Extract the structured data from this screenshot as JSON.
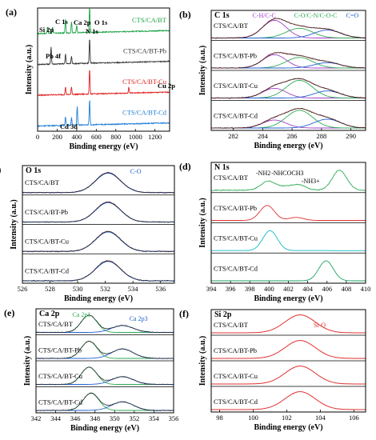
{
  "chart_data": [
    {
      "panel": "(a)",
      "type": "line",
      "xlabel": "Binding energy (eV)",
      "ylabel": "Intensity (a.u.)",
      "xlim": [
        0,
        1350
      ],
      "xticks": [
        0,
        200,
        400,
        600,
        800,
        1000,
        1200
      ],
      "series": [
        {
          "name": "CTS/CA/BT",
          "color": "#1aa344",
          "peaks": [
            [
              102,
              0.25
            ],
            [
              153,
              0.25
            ],
            [
              285,
              0.55
            ],
            [
              347,
              0.45
            ],
            [
              400,
              0.3
            ],
            [
              532,
              1.0
            ]
          ]
        },
        {
          "name": "CTS/CA/BT-Pb",
          "color": "#333333",
          "peaks": [
            [
              138,
              0.7
            ],
            [
              285,
              0.4
            ],
            [
              347,
              0.3
            ],
            [
              532,
              1.0
            ]
          ]
        },
        {
          "name": "CTS/CA/BT-Cu",
          "color": "#e02020",
          "peaks": [
            [
              285,
              0.3
            ],
            [
              347,
              0.3
            ],
            [
              532,
              1.0
            ],
            [
              933,
              0.25
            ]
          ]
        },
        {
          "name": "CTS/CA/BT-Cd",
          "color": "#1e7fd6",
          "peaks": [
            [
              285,
              0.35
            ],
            [
              347,
              0.3
            ],
            [
              405,
              0.75
            ],
            [
              532,
              1.0
            ]
          ]
        }
      ],
      "annotations": [
        "Si 2p",
        "C 1s",
        "Ca 2p",
        "N 1s",
        "O 1s",
        "Pb 4f",
        "Cu 2p",
        "Cd 3d"
      ]
    },
    {
      "panel": "(b)",
      "type": "line",
      "title": "C 1s",
      "xlabel": "Binding energy (eV)",
      "ylabel": "Intensity (a.u.)",
      "xlim": [
        280.5,
        291
      ],
      "xticks": [
        282,
        284,
        286,
        288,
        290
      ],
      "samples": [
        "CTS/CA/BT",
        "CTS/CA/BT-Pb",
        "CTS/CA/BT-Cu",
        "CTS/CA/BT-Cd"
      ],
      "components": [
        {
          "name": "C-H/C-C",
          "color": "#a040c8",
          "center": 284.8
        },
        {
          "name": "C-O/C-N/C-O-C",
          "color": "#2eaa55",
          "center": 286.5
        },
        {
          "name": "C=O",
          "color": "#2060d0",
          "center": 288.4
        }
      ],
      "amplitudes": [
        [
          1.0,
          0.55,
          0.45
        ],
        [
          0.75,
          0.6,
          0.3
        ],
        [
          0.55,
          1.0,
          0.4
        ],
        [
          0.45,
          1.0,
          0.5
        ]
      ]
    },
    {
      "panel": "(c)",
      "type": "line",
      "title": "O 1s",
      "xlabel": "Binding energy (eV)",
      "ylabel": "Intensity (a.u.)",
      "xlim": [
        526,
        537
      ],
      "xticks": [
        526,
        528,
        530,
        532,
        534,
        536
      ],
      "samples": [
        "CTS/CA/BT",
        "CTS/CA/BT-Pb",
        "CTS/CA/BT-Cu",
        "CTS/CA/BT-Cd"
      ],
      "components": [
        {
          "name": "C-O",
          "color": "#2060d0",
          "center": 532.2
        }
      ]
    },
    {
      "panel": "(d)",
      "type": "line",
      "title": "N 1s",
      "xlabel": "Binding energy (eV)",
      "ylabel": "Intensity (a.u.)",
      "xlim": [
        394,
        410
      ],
      "xticks": [
        394,
        396,
        398,
        400,
        402,
        404,
        406,
        408,
        410
      ],
      "samples": [
        "CTS/CA/BT",
        "CTS/CA/BT-Pb",
        "CTS/CA/BT-Cu",
        "CTS/CA/BT-Cd"
      ],
      "components": [
        {
          "name": "-NH2",
          "center": 399.9
        },
        {
          "name": "-NHCOCH3",
          "center": 401.7
        },
        {
          "name": "-NH3+",
          "center": 403.1
        }
      ],
      "peaks": [
        [
          [
            399.9,
            0.45
          ],
          [
            401.7,
            0.15
          ],
          [
            403.1,
            0.25
          ],
          [
            407.3,
            1.0
          ]
        ],
        [
          [
            399.8,
            0.75
          ],
          [
            402.8,
            0.15
          ]
        ],
        [
          [
            400.1,
            1.0
          ]
        ],
        [
          [
            405.9,
            1.0
          ]
        ]
      ]
    },
    {
      "panel": "(e)",
      "type": "line",
      "title": "Ca 2p",
      "xlabel": "Binding energy (eV)",
      "ylabel": "Intensity (a.u.)",
      "xlim": [
        342,
        356
      ],
      "xticks": [
        342,
        344,
        346,
        348,
        350,
        352,
        354,
        356
      ],
      "samples": [
        "CTS/CA/BT",
        "CTS/CA/BT-Pb",
        "CTS/CA/BT-Cu",
        "CTS/CA/BT-Cd"
      ],
      "components": [
        {
          "name": "Ca 2p1",
          "color": "#2eaa55",
          "center": 347.4
        },
        {
          "name": "Ca 2p3",
          "color": "#2060d0",
          "center": 350.8
        }
      ]
    },
    {
      "panel": "(f)",
      "type": "line",
      "title": "Si 2p",
      "xlabel": "Binding energy (eV)",
      "ylabel": "Intensity (a.u.)",
      "xlim": [
        97.5,
        106.7
      ],
      "xticks": [
        98,
        100,
        102,
        104,
        106
      ],
      "samples": [
        "CTS/CA/BT",
        "CTS/CA/BT-Pb",
        "CTS/CA/BT-Cu",
        "CTS/CA/BT-Cd"
      ],
      "components": [
        {
          "name": "Si-O",
          "color": "#e03030",
          "center": 102.8
        }
      ]
    }
  ]
}
